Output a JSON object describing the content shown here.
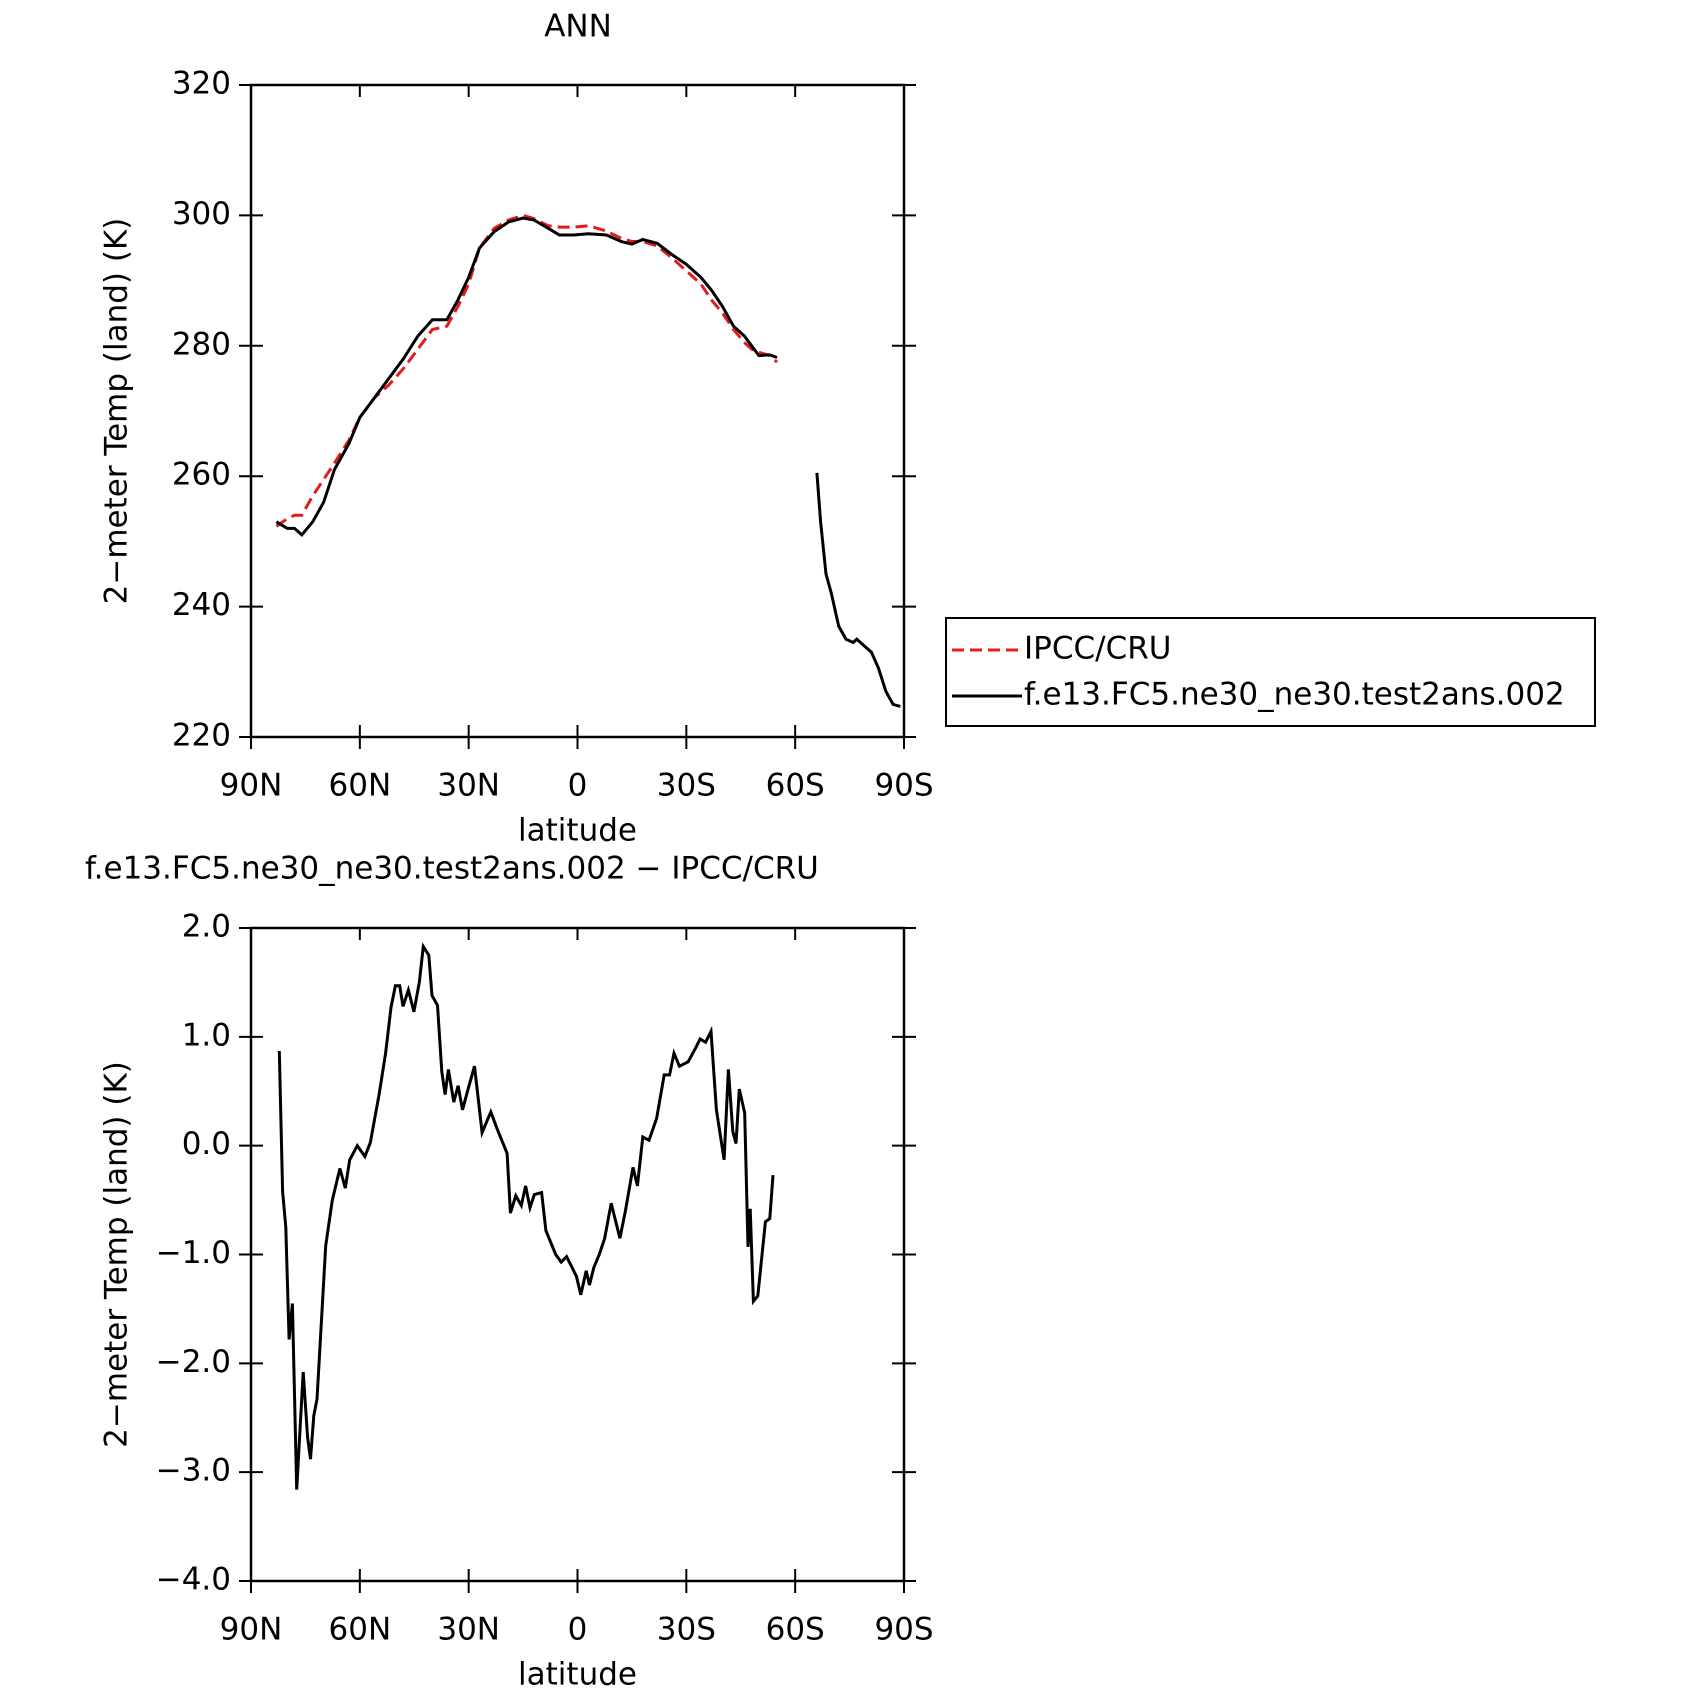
{
  "chart_data": [
    {
      "type": "line",
      "title": "ANN",
      "x_label": "latitude",
      "y_label": "2−meter Temp (land) (K)",
      "xlim": [
        90,
        -90
      ],
      "ylim": [
        220,
        320
      ],
      "xticks": [
        {
          "value": 90,
          "label": "90N"
        },
        {
          "value": 60,
          "label": "60N"
        },
        {
          "value": 30,
          "label": "30N"
        },
        0,
        {
          "value": -30,
          "label": "30S"
        },
        {
          "value": -60,
          "label": "60S"
        },
        {
          "value": -90,
          "label": "90S"
        }
      ],
      "yticks": [
        220,
        240,
        260,
        280,
        300,
        320
      ],
      "x": [
        83,
        80,
        78,
        76,
        73,
        70,
        67,
        63,
        60,
        56,
        52,
        48,
        44,
        40,
        36,
        33,
        30,
        27,
        23,
        19,
        15,
        12,
        8,
        5,
        1,
        -3,
        -8,
        -12,
        -15,
        -18,
        -22,
        -26,
        -30,
        -34,
        -37,
        -40,
        -43,
        -46,
        -48,
        -50,
        -53,
        -55,
        -60,
        -66,
        -67,
        -68.5,
        -70,
        -72,
        -74,
        -76,
        -77,
        -79,
        -81,
        -83,
        -85,
        -87,
        -89
      ],
      "series": [
        {
          "name": "IPCC/CRU",
          "color": "#e41a1c",
          "dash": true,
          "values": [
            252.3,
            253.5,
            254,
            254,
            257,
            259.5,
            262,
            265.5,
            269,
            272,
            274,
            276.5,
            279.5,
            282.5,
            283,
            286,
            289.5,
            295,
            298,
            299.3,
            300,
            299.5,
            298.4,
            298.2,
            298.2,
            298.4,
            297.6,
            296.5,
            296,
            296,
            295.3,
            293.5,
            291.5,
            289.5,
            287,
            285,
            282.5,
            280.5,
            279.5,
            279,
            278.5,
            277.5,
            null,
            null,
            null,
            null,
            null,
            null,
            null,
            null,
            null,
            null,
            null,
            null,
            null,
            null,
            null
          ]
        },
        {
          "name": "f.e13.FC5.ne30_ne30.test2ans.002",
          "color": "#000000",
          "dash": false,
          "values": [
            253,
            252,
            252,
            251,
            253,
            256,
            261,
            265,
            269,
            272,
            275,
            278,
            281.5,
            284,
            284,
            287,
            290.5,
            295,
            297.5,
            299,
            299.6,
            299.3,
            298,
            297,
            297,
            297.2,
            297,
            296,
            295.6,
            296.3,
            295.7,
            294,
            292.5,
            290.5,
            288.5,
            286,
            283,
            281.5,
            280,
            278.5,
            278.6,
            278.2,
            null,
            260.5,
            253,
            245,
            242,
            237,
            235,
            234.5,
            235,
            234,
            233,
            230.5,
            227,
            225,
            224.7
          ]
        }
      ]
    },
    {
      "type": "line",
      "title": "f.e13.FC5.ne30_ne30.test2ans.002 − IPCC/CRU",
      "x_label": "latitude",
      "y_label": "2−meter Temp (land) (K)",
      "xlim": [
        90,
        -90
      ],
      "ylim": [
        -4,
        2
      ],
      "xticks": [
        {
          "value": 90,
          "label": "90N"
        },
        {
          "value": 60,
          "label": "60N"
        },
        {
          "value": 30,
          "label": "30N"
        },
        0,
        {
          "value": -30,
          "label": "30S"
        },
        {
          "value": -60,
          "label": "60S"
        },
        {
          "value": -90,
          "label": "90S"
        }
      ],
      "yticks": [
        {
          "value": -4,
          "label": "−4.0"
        },
        {
          "value": -3,
          "label": "−3.0"
        },
        {
          "value": -2,
          "label": "−2.0"
        },
        {
          "value": -1,
          "label": "−1.0"
        },
        {
          "value": 0,
          "label": "0.0"
        },
        {
          "value": 1,
          "label": "1.0"
        },
        {
          "value": 2,
          "label": "2.0"
        }
      ],
      "x": [
        82.2,
        81.3,
        80.4,
        79.5,
        78.6,
        77.4,
        75.6,
        74.4,
        73.6,
        72.7,
        71.8,
        69.4,
        67.6,
        65.5,
        64,
        62.8,
        60.7,
        58.6,
        57.1,
        55.9,
        54.7,
        52.9,
        51.4,
        50.2,
        49,
        48.1,
        46.6,
        45.1,
        43.6,
        42.5,
        41,
        40.1,
        38.6,
        37.4,
        36.5,
        35.6,
        34.1,
        32.9,
        31.7,
        29.9,
        28.4,
        26.3,
        23.9,
        22.1,
        19.4,
        18.5,
        17,
        15.5,
        14.3,
        13.1,
        11.9,
        9.9,
        8.7,
        6,
        4.5,
        3,
        1.5,
        0.3,
        -0.9,
        -2.4,
        -3.3,
        -4.5,
        -6,
        -7.5,
        -9.3,
        -11.7,
        -13.2,
        -15.3,
        -16.5,
        -18,
        -19.7,
        -21.8,
        -23.9,
        -25.4,
        -26.6,
        -28.1,
        -30.5,
        -32.6,
        -33.8,
        -35.3,
        -36.8,
        -38.3,
        -40.4,
        -41.6,
        -42.8,
        -43.7,
        -44.6,
        -46.1,
        -47,
        -47.6,
        -48.5,
        -49.7,
        -51.8,
        -53,
        -53.9
      ],
      "series": [
        {
          "color": "#000000",
          "values": [
            0.87,
            -0.42,
            -0.75,
            -1.78,
            -1.45,
            -3.16,
            -2.08,
            -2.68,
            -2.88,
            -2.48,
            -2.33,
            -0.92,
            -0.5,
            -0.21,
            -0.39,
            -0.13,
            0.0,
            -0.1,
            0.03,
            0.25,
            0.47,
            0.85,
            1.27,
            1.47,
            1.47,
            1.28,
            1.43,
            1.23,
            1.5,
            1.83,
            1.75,
            1.38,
            1.29,
            0.68,
            0.47,
            0.7,
            0.4,
            0.55,
            0.33,
            0.55,
            0.73,
            0.12,
            0.31,
            0.15,
            -0.07,
            -0.62,
            -0.46,
            -0.55,
            -0.37,
            -0.57,
            -0.45,
            -0.43,
            -0.78,
            -1.0,
            -1.07,
            -1.02,
            -1.12,
            -1.2,
            -1.37,
            -1.15,
            -1.28,
            -1.12,
            -1.0,
            -0.85,
            -0.53,
            -0.85,
            -0.6,
            -0.2,
            -0.37,
            0.08,
            0.05,
            0.25,
            0.65,
            0.65,
            0.85,
            0.73,
            0.77,
            0.9,
            0.98,
            0.95,
            1.05,
            0.33,
            -0.13,
            0.7,
            0.13,
            0.02,
            0.52,
            0.3,
            -0.93,
            -0.58,
            -1.43,
            -1.38,
            -0.7,
            -0.67,
            -0.27
          ]
        }
      ]
    }
  ]
}
